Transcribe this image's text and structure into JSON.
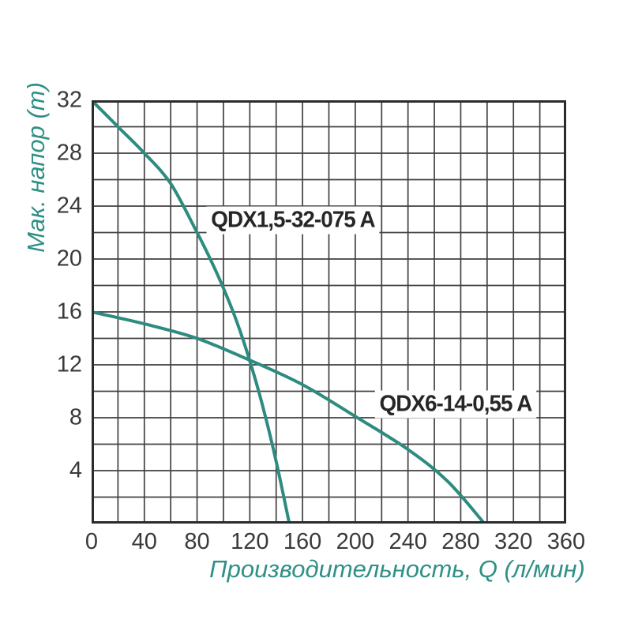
{
  "chart_data": {
    "type": "line",
    "title": "",
    "xlabel": "Производительность, Q (л/мин)",
    "ylabel": "Мак. напор (m)",
    "xlim": [
      0,
      360
    ],
    "ylim": [
      0,
      32
    ],
    "x_major_ticks": [
      0,
      40,
      80,
      120,
      160,
      200,
      240,
      280,
      320,
      360
    ],
    "y_major_ticks": [
      4,
      8,
      12,
      16,
      20,
      24,
      28,
      32
    ],
    "x_minor_step": 20,
    "y_minor_step": 2,
    "grid": true,
    "legend_position": "inline-labels",
    "series": [
      {
        "name": "QDX1,5-32-075 A",
        "x": [
          0,
          20,
          40,
          60,
          80,
          90,
          100,
          110,
          120,
          130,
          140,
          150
        ],
        "y": [
          32,
          30,
          28,
          25.7,
          22,
          20,
          17.8,
          15.3,
          12.3,
          8.8,
          4.7,
          0
        ],
        "label_pos": {
          "x": 153,
          "y": 22.9
        }
      },
      {
        "name": "QDX6-14-0,55 A",
        "x": [
          0,
          40,
          80,
          120,
          160,
          200,
          240,
          270,
          298
        ],
        "y": [
          16,
          15.1,
          14,
          12.35,
          10.5,
          8.1,
          5.6,
          3.2,
          0
        ],
        "label_pos": {
          "x": 276,
          "y": 9.0
        }
      }
    ],
    "colors": {
      "curve": "#2e8b80",
      "teal_text": "#2f9086",
      "grid": "#414141",
      "border": "#2b2b2b",
      "tick_text": "#3a3a3a",
      "series_label_text": "#262626",
      "background": "#ffffff"
    }
  }
}
